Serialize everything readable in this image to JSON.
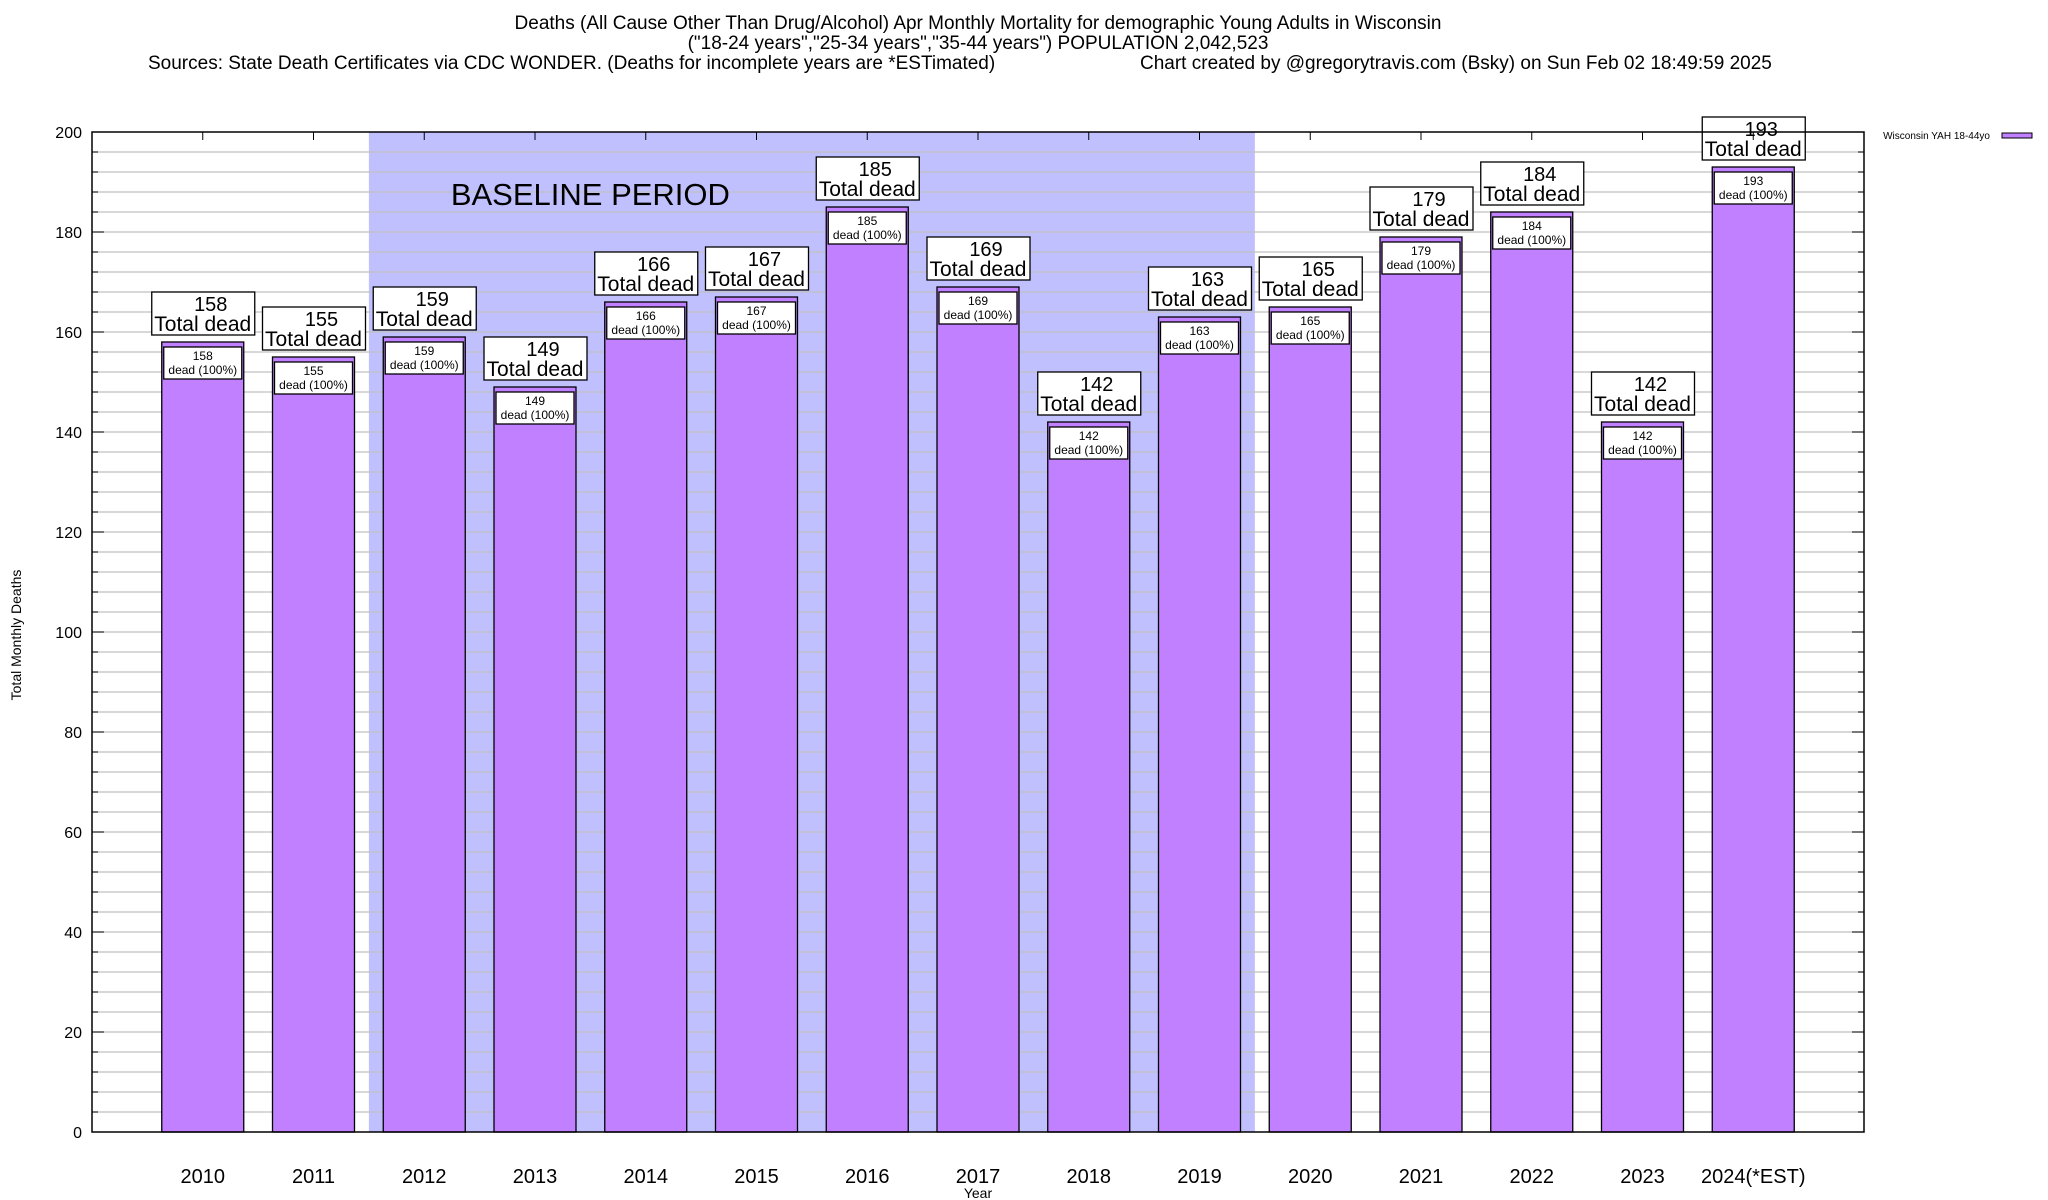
{
  "header": {
    "title_line1": "Deaths (All Cause Other Than Drug/Alcohol) Apr Monthly Mortality for demographic Young Adults in Wisconsin",
    "title_line2": "(\"18-24 years\",\"25-34 years\",\"35-44 years\") POPULATION 2,042,523",
    "sources": "Sources: State Death Certificates via CDC WONDER. (Deaths for incomplete years are *ESTimated)",
    "credit": "Chart created by @gregorytravis.com (Bsky) on Sun Feb 02 18:49:59 2025"
  },
  "chart_data": {
    "type": "bar",
    "title": "Deaths (All Cause Other Than Drug/Alcohol) Apr Monthly Mortality for demographic Young Adults in Wisconsin",
    "xlabel": "Year",
    "ylabel": "Total Monthly Deaths",
    "ylim": [
      0,
      200
    ],
    "yticks": [
      0,
      20,
      40,
      60,
      80,
      100,
      120,
      140,
      160,
      180,
      200
    ],
    "grid": true,
    "legend": {
      "position": "top-right",
      "entries": [
        "Wisconsin YAH 18-44yo"
      ]
    },
    "categories": [
      "2010",
      "2011",
      "2012",
      "2013",
      "2014",
      "2015",
      "2016",
      "2017",
      "2018",
      "2019",
      "2020",
      "2021",
      "2022",
      "2023",
      "2024(*EST)"
    ],
    "series": [
      {
        "name": "Wisconsin YAH 18-44yo",
        "values": [
          158,
          155,
          159,
          149,
          166,
          167,
          185,
          169,
          142,
          163,
          165,
          179,
          184,
          142,
          193
        ]
      }
    ],
    "top_label_suffix": "Total dead",
    "inner_label_suffix": "dead (100%)",
    "annotation": {
      "text": "BASELINE PERIOD",
      "range": [
        "2012",
        "2019"
      ]
    },
    "colors": {
      "bar": "#c080ff",
      "baseline_shade": "#c0c0ff",
      "grid": "#c0c0c0"
    }
  }
}
